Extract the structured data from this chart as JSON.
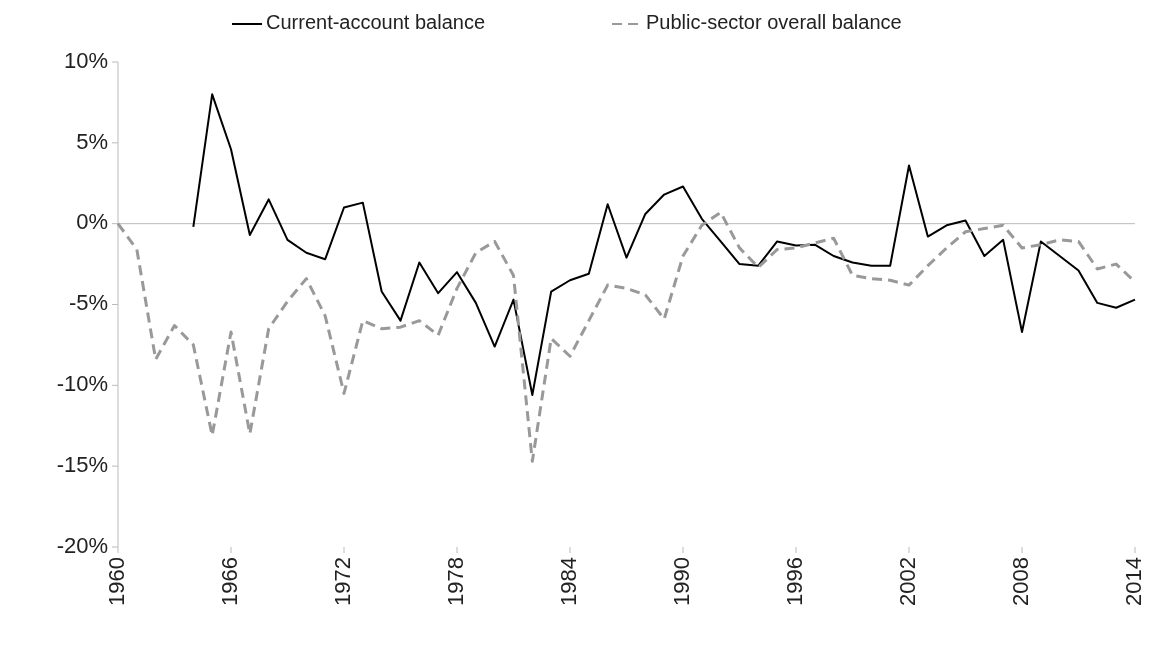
{
  "chart_data": {
    "type": "line",
    "x": [
      1960,
      1961,
      1962,
      1963,
      1964,
      1965,
      1966,
      1967,
      1968,
      1969,
      1970,
      1971,
      1972,
      1973,
      1974,
      1975,
      1976,
      1977,
      1978,
      1979,
      1980,
      1981,
      1982,
      1983,
      1984,
      1985,
      1986,
      1987,
      1988,
      1989,
      1990,
      1991,
      1992,
      1993,
      1994,
      1995,
      1996,
      1997,
      1998,
      1999,
      2000,
      2001,
      2002,
      2003,
      2004,
      2005,
      2006,
      2007,
      2008,
      2009,
      2010,
      2011,
      2012,
      2013,
      2014
    ],
    "series": [
      {
        "name": "Current-account balance",
        "color": "#000000",
        "line_style": "solid",
        "values": [
          null,
          null,
          null,
          null,
          -0.2,
          8.0,
          4.6,
          -0.7,
          1.5,
          -1.0,
          -1.8,
          -2.2,
          1.0,
          1.3,
          -4.2,
          -6.0,
          -2.4,
          -4.3,
          -3.0,
          -4.9,
          -7.6,
          -4.7,
          -10.6,
          -4.2,
          -3.5,
          -3.1,
          1.2,
          -2.1,
          0.6,
          1.8,
          2.3,
          0.3,
          -1.1,
          -2.5,
          -2.6,
          -1.1,
          -1.35,
          -1.3,
          -2.0,
          -2.4,
          -2.6,
          -2.6,
          3.6,
          -0.8,
          -0.1,
          0.2,
          -2.0,
          -1.0,
          -6.7,
          -1.1,
          -2.0,
          -2.9,
          -4.9,
          -5.2,
          -4.7
        ]
      },
      {
        "name": "Public-sector overall balance",
        "color": "#999999",
        "line_style": "dashed",
        "values": [
          0,
          -1.6,
          -8.4,
          -6.3,
          -7.5,
          -13.1,
          -6.7,
          -13.0,
          -6.5,
          -4.8,
          -3.4,
          -5.7,
          -10.5,
          -6.0,
          -6.5,
          -6.4,
          -6.0,
          -6.9,
          -4.0,
          -1.8,
          -1.1,
          -3.2,
          -14.7,
          -7.1,
          -8.2,
          -6.0,
          -3.8,
          -4.0,
          -4.4,
          -5.9,
          -2.0,
          -0.1,
          0.7,
          -1.5,
          -2.7,
          -1.6,
          -1.5,
          -1.2,
          -0.9,
          -3.2,
          -3.4,
          -3.5,
          -3.8,
          -2.6,
          -1.5,
          -0.5,
          -0.3,
          -0.1,
          -1.5,
          -1.3,
          -1.0,
          -1.1,
          -2.8,
          -2.5,
          -3.6
        ]
      }
    ],
    "xlim": [
      1960,
      2014
    ],
    "xticks": [
      1960,
      1966,
      1972,
      1978,
      1984,
      1990,
      1996,
      2002,
      2008,
      2014
    ],
    "ylim": [
      -20,
      10
    ],
    "yticks": [
      {
        "value": -20,
        "label": "-20%"
      },
      {
        "value": -15,
        "label": "-15%"
      },
      {
        "value": -10,
        "label": "-10%"
      },
      {
        "value": -5,
        "label": "-5%"
      },
      {
        "value": 0,
        "label": "0%"
      },
      {
        "value": 5,
        "label": "5%"
      },
      {
        "value": 10,
        "label": "10%"
      }
    ],
    "legend": "top"
  }
}
